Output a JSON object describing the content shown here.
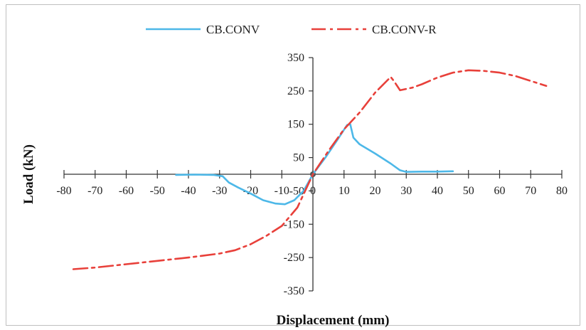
{
  "chart_data": {
    "type": "line",
    "title": "",
    "xlabel": "Displacement (mm)",
    "ylabel": "Load (kN)",
    "xlim": [
      -80,
      80
    ],
    "ylim": [
      -350,
      350
    ],
    "x_ticks": [
      -80,
      -70,
      -60,
      -50,
      -40,
      -30,
      -20,
      -10,
      0,
      10,
      20,
      30,
      40,
      50,
      60,
      70,
      80
    ],
    "y_ticks": [
      -350,
      -250,
      -150,
      -50,
      50,
      150,
      250,
      350
    ],
    "grid": false,
    "legend": "top",
    "series": [
      {
        "name": "CB.CONV",
        "color": "#4db8e8",
        "style": "solid",
        "points": [
          [
            -44,
            -2
          ],
          [
            -38,
            -1
          ],
          [
            -32,
            -2
          ],
          [
            -29,
            -6
          ],
          [
            -27,
            -25
          ],
          [
            -24,
            -40
          ],
          [
            -20,
            -58
          ],
          [
            -16,
            -78
          ],
          [
            -12,
            -88
          ],
          [
            -9,
            -90
          ],
          [
            -6,
            -78
          ],
          [
            -3,
            -50
          ],
          [
            0,
            0
          ],
          [
            4,
            50
          ],
          [
            8,
            105
          ],
          [
            11,
            148
          ],
          [
            12,
            150
          ],
          [
            13,
            110
          ],
          [
            15,
            90
          ],
          [
            20,
            62
          ],
          [
            25,
            32
          ],
          [
            28,
            12
          ],
          [
            30,
            7
          ],
          [
            35,
            8
          ],
          [
            40,
            8
          ],
          [
            45,
            9
          ]
        ]
      },
      {
        "name": "CB.CONV-R",
        "color": "#e8403a",
        "style": "dash-dot",
        "points": [
          [
            -77,
            -285
          ],
          [
            -70,
            -280
          ],
          [
            -60,
            -270
          ],
          [
            -50,
            -260
          ],
          [
            -40,
            -250
          ],
          [
            -30,
            -238
          ],
          [
            -25,
            -228
          ],
          [
            -20,
            -210
          ],
          [
            -15,
            -185
          ],
          [
            -10,
            -155
          ],
          [
            -5,
            -100
          ],
          [
            0,
            0
          ],
          [
            5,
            70
          ],
          [
            10,
            135
          ],
          [
            15,
            185
          ],
          [
            20,
            245
          ],
          [
            25,
            292
          ],
          [
            26,
            280
          ],
          [
            28,
            252
          ],
          [
            32,
            260
          ],
          [
            35,
            270
          ],
          [
            40,
            290
          ],
          [
            45,
            305
          ],
          [
            50,
            312
          ],
          [
            55,
            310
          ],
          [
            60,
            305
          ],
          [
            65,
            295
          ],
          [
            70,
            280
          ],
          [
            75,
            265
          ]
        ]
      }
    ]
  }
}
